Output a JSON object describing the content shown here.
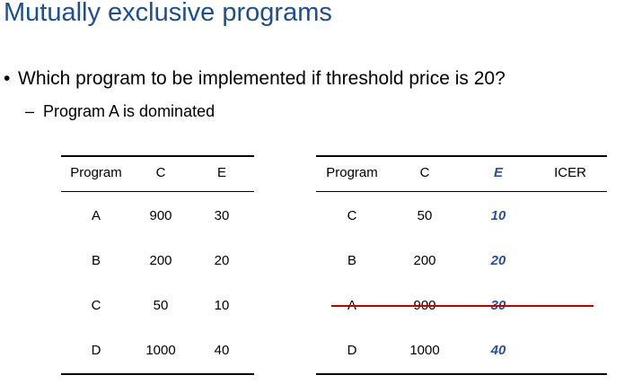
{
  "title": "Mutually exclusive programs",
  "bullet": {
    "symbol": "•",
    "text": "Which program to be implemented if threshold price is 20?"
  },
  "sub_bullet": {
    "symbol": "–",
    "text": "Program A is dominated"
  },
  "table_left": {
    "headers": [
      "Program",
      "C",
      "E"
    ],
    "rows": [
      [
        "A",
        "900",
        "30"
      ],
      [
        "B",
        "200",
        "20"
      ],
      [
        "C",
        "50",
        "10"
      ],
      [
        "D",
        "1000",
        "40"
      ]
    ]
  },
  "table_right": {
    "headers": [
      "Program",
      "C",
      "E",
      "ICER"
    ],
    "rows": [
      [
        "C",
        "50",
        "10",
        ""
      ],
      [
        "B",
        "200",
        "20",
        ""
      ],
      [
        "A",
        "900",
        "30",
        ""
      ],
      [
        "D",
        "1000",
        "40",
        ""
      ]
    ],
    "struck_row": "A"
  },
  "colors": {
    "title": "#1f4e8c",
    "e_values": "#2a4f9e",
    "strike": "#c00000"
  }
}
